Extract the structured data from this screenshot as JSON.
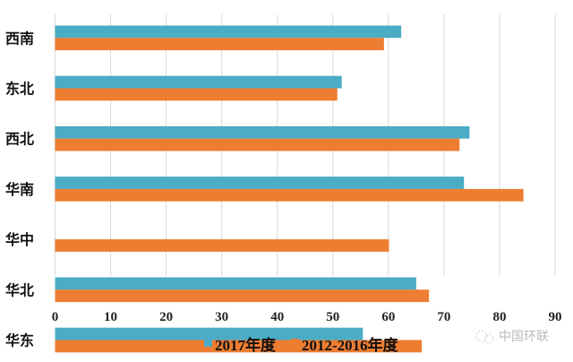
{
  "chart_data": {
    "type": "bar",
    "orientation": "horizontal",
    "categories": [
      "西南",
      "东北",
      "西北",
      "华南",
      "华中",
      "华北",
      "华东"
    ],
    "series": [
      {
        "name": "2017年度",
        "color": "#4bacc6",
        "values": [
          62.3,
          51.6,
          74.6,
          73.6,
          null,
          65.0,
          55.4
        ]
      },
      {
        "name": "2012-2016年度",
        "color": "#ed7d31",
        "values": [
          59.2,
          50.8,
          72.8,
          84.3,
          60.1,
          67.3,
          66.0
        ]
      }
    ],
    "xlim": [
      0,
      90
    ],
    "xticks": [
      "0",
      "10",
      "20",
      "30",
      "40",
      "50",
      "60",
      "70",
      "80",
      "90"
    ],
    "grid": true,
    "legend": "bottom",
    "title": "",
    "xlabel": "",
    "ylabel": ""
  },
  "watermark": "中国环联"
}
